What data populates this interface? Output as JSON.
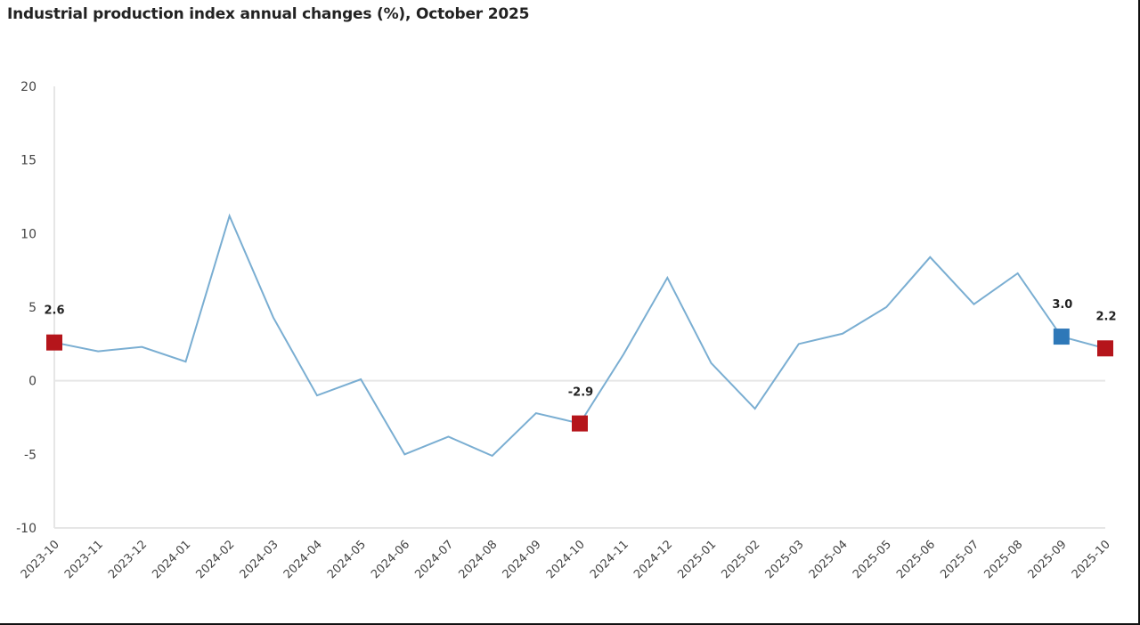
{
  "title": "Industrial production index annual changes (%), October 2025",
  "colors": {
    "line": "#7aaed2",
    "highlight_red": "#b5151b",
    "highlight_blue": "#2e78b8",
    "grid": "#e6e6e6",
    "axis_text": "#444444"
  },
  "chart_data": {
    "type": "line",
    "title": "Industrial production index annual changes (%), October 2025",
    "xlabel": "",
    "ylabel": "",
    "ylim": [
      -10,
      20
    ],
    "yticks": [
      20,
      15,
      10,
      5,
      0,
      -5,
      -10
    ],
    "grid": "zero line only",
    "legend": "none",
    "categories": [
      "2023-10",
      "2023-11",
      "2023-12",
      "2024-01",
      "2024-02",
      "2024-03",
      "2024-04",
      "2024-05",
      "2024-06",
      "2024-07",
      "2024-08",
      "2024-09",
      "2024-10",
      "2024-11",
      "2024-12",
      "2025-01",
      "2025-02",
      "2025-03",
      "2025-04",
      "2025-05",
      "2025-06",
      "2025-07",
      "2025-08",
      "2025-09",
      "2025-10"
    ],
    "series": [
      {
        "name": "Industrial production index annual change (%)",
        "values": [
          2.6,
          2.0,
          2.3,
          1.3,
          11.2,
          4.3,
          -1.0,
          0.1,
          -5.0,
          -3.8,
          -5.1,
          -2.2,
          -2.9,
          1.8,
          7.0,
          1.2,
          -1.9,
          2.5,
          3.2,
          5.0,
          8.4,
          5.2,
          7.3,
          3.0,
          2.2
        ]
      }
    ],
    "annotations": [
      {
        "category": "2023-10",
        "label": "2.6",
        "marker": "red-square"
      },
      {
        "category": "2024-10",
        "label": "-2.9",
        "marker": "red-square"
      },
      {
        "category": "2025-09",
        "label": "3.0",
        "marker": "blue-square"
      },
      {
        "category": "2025-10",
        "label": "2.2",
        "marker": "red-square"
      }
    ]
  }
}
